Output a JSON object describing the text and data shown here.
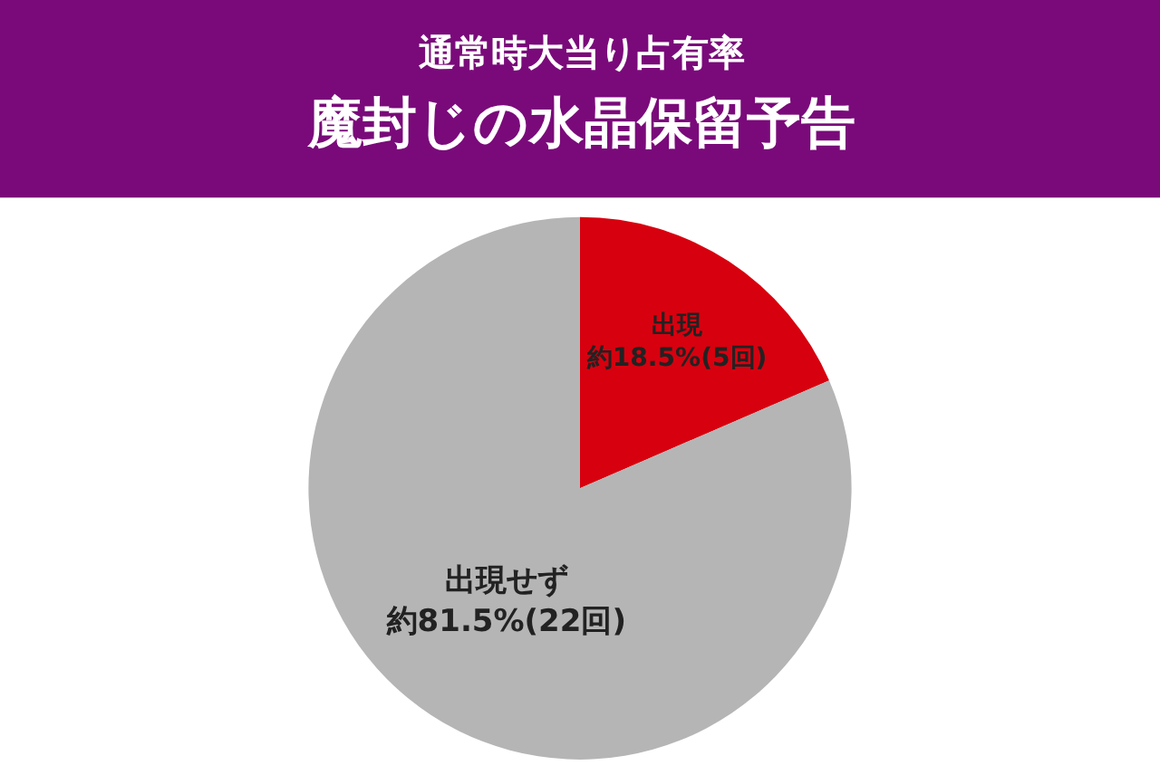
{
  "chart_data": {
    "type": "pie",
    "title": "通常時大当り占有率",
    "subtitle": "魔封じの水晶保留予告",
    "categories": [
      "出現",
      "出現せず"
    ],
    "values": [
      18.5,
      81.5
    ],
    "colors": [
      "#d7000f",
      "#b5b5b5"
    ],
    "value_labels": [
      "約18.5%(5回)",
      "約81.5%(22回)"
    ],
    "legend": false
  }
}
